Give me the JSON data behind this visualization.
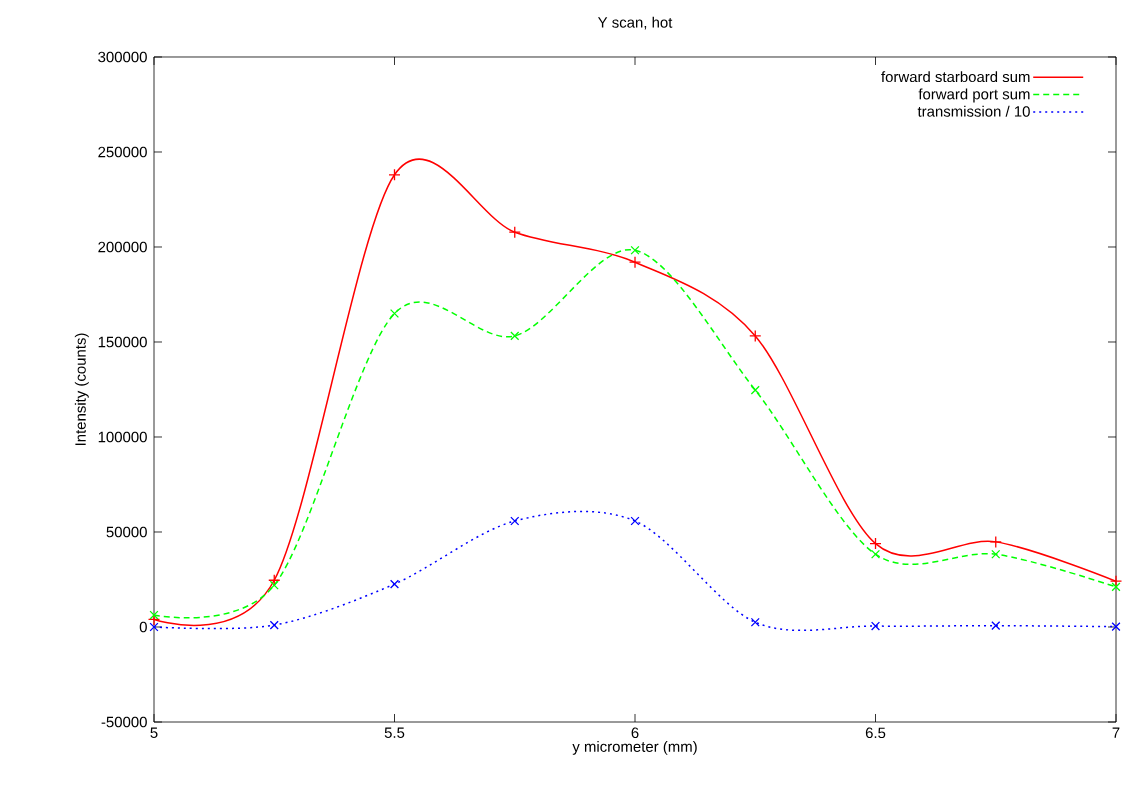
{
  "chart_data": {
    "type": "line",
    "title": "Y scan, hot",
    "xlabel": "y micrometer (mm)",
    "ylabel": "Intensity (counts)",
    "x": [
      5,
      5.25,
      5.5,
      5.75,
      6,
      6.25,
      6.5,
      6.75,
      7
    ],
    "series": [
      {
        "name": "forward starboard sum",
        "color": "#ff0000",
        "line_style": "solid",
        "marker": "plus",
        "values": [
          4000,
          24600,
          238000,
          207800,
          192000,
          153200,
          43900,
          44800,
          24100
        ]
      },
      {
        "name": "forward port sum",
        "color": "#00ff00",
        "line_style": "dashed",
        "marker": "cross",
        "values": [
          6300,
          22000,
          165000,
          153200,
          198300,
          124700,
          38300,
          38300,
          21100
        ]
      },
      {
        "name": "transmission / 10",
        "color": "#0000ff",
        "line_style": "dotted",
        "marker": "cross",
        "values": [
          0,
          1000,
          22600,
          55800,
          55800,
          2500,
          500,
          700,
          200
        ]
      }
    ],
    "xlim": [
      5,
      7
    ],
    "xticks": [
      5,
      5.5,
      6,
      6.5,
      7
    ],
    "ylim": [
      -50000,
      300000
    ],
    "yticks": [
      -50000,
      0,
      50000,
      100000,
      150000,
      200000,
      250000,
      300000
    ],
    "grid": false,
    "legend": "top right"
  }
}
